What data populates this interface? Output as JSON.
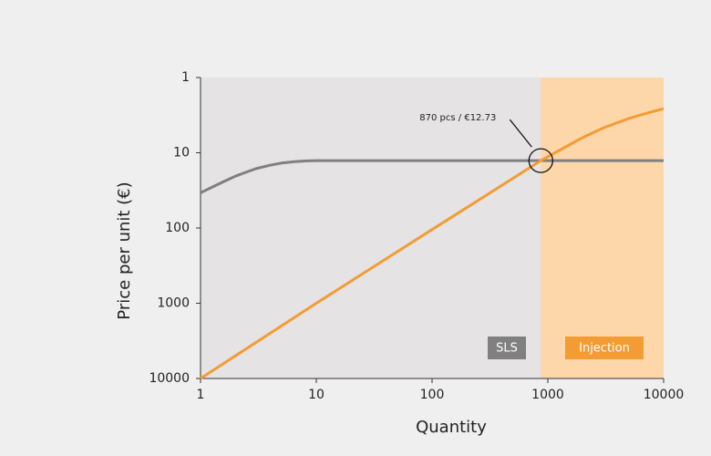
{
  "chart_data": {
    "type": "line",
    "xlabel": "Quantity",
    "ylabel": "Price per unit (€)",
    "xscale": "log",
    "yscale": "log",
    "y_reversed": true,
    "xlim": [
      1,
      10000
    ],
    "xticks": [
      1,
      10,
      100,
      1000,
      10000
    ],
    "ylim": [
      1,
      10000
    ],
    "yticks": [
      1,
      10,
      100,
      1000,
      10000
    ],
    "series": [
      {
        "name": "SLS",
        "color": "#808080",
        "x": [
          1,
          1.3,
          1.6,
          2,
          2.5,
          3,
          4,
          5,
          6.5,
          8,
          10,
          10000
        ],
        "values": [
          34,
          28,
          24,
          20.5,
          18,
          16.3,
          14.6,
          13.7,
          13.1,
          12.85,
          12.73,
          12.73
        ]
      },
      {
        "name": "Injection",
        "color": "#f39c33",
        "x": [
          1,
          10,
          100,
          300,
          870,
          1500,
          2000,
          3000,
          5000,
          7000,
          10000
        ],
        "values": [
          10000,
          1000,
          105,
          36,
          12.73,
          8,
          6.3,
          4.7,
          3.5,
          3,
          2.6
        ]
      }
    ],
    "regions": [
      {
        "from": 1,
        "to": 870,
        "color": "#e5e3e4"
      },
      {
        "from": 870,
        "to": 10000,
        "color": "#fdd6a9"
      }
    ],
    "annotation": {
      "text": "870 pcs / €12.73",
      "x": 870,
      "y": 12.73
    }
  }
}
